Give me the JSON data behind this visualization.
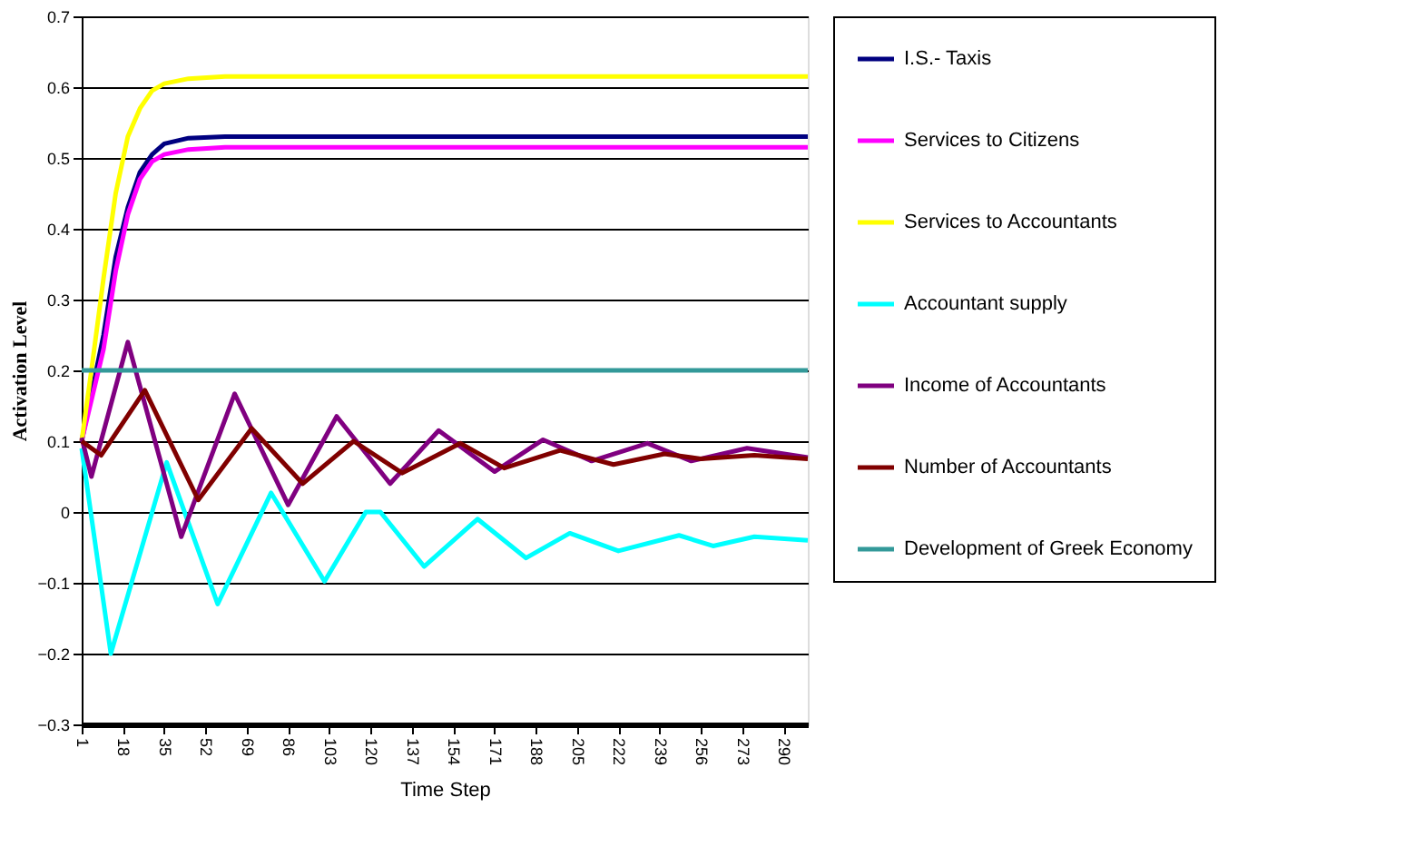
{
  "chart_data": {
    "type": "line",
    "xlabel": "Time Step",
    "ylabel": "Activation Level",
    "xlim": [
      1,
      300
    ],
    "xticks": [
      1,
      18,
      35,
      52,
      69,
      86,
      103,
      120,
      137,
      154,
      171,
      188,
      205,
      222,
      239,
      256,
      273,
      290
    ],
    "ylim": [
      -0.3,
      0.7
    ],
    "yticks": [
      -0.3,
      -0.2,
      -0.1,
      0,
      0.1,
      0.2,
      0.3,
      0.4,
      0.5,
      0.6,
      0.7
    ],
    "grid": "y",
    "legend": "right",
    "marker": "none",
    "line_style": "solid",
    "series": [
      {
        "name": "I.S.- Taxis",
        "color": "#000080",
        "x": [
          1,
          10,
          15,
          20,
          25,
          30,
          35,
          45,
          60,
          300
        ],
        "values": [
          0.1,
          0.25,
          0.36,
          0.43,
          0.48,
          0.505,
          0.52,
          0.528,
          0.53,
          0.53
        ]
      },
      {
        "name": "Services to Citizens",
        "color": "#ff00ff",
        "x": [
          1,
          10,
          15,
          20,
          25,
          30,
          35,
          45,
          60,
          300
        ],
        "values": [
          0.1,
          0.23,
          0.34,
          0.42,
          0.47,
          0.495,
          0.505,
          0.512,
          0.515,
          0.515
        ]
      },
      {
        "name": "Services to Accountants",
        "color": "#ffff00",
        "x": [
          1,
          5,
          10,
          15,
          20,
          25,
          30,
          35,
          45,
          60,
          300
        ],
        "values": [
          0.1,
          0.2,
          0.33,
          0.45,
          0.53,
          0.57,
          0.595,
          0.605,
          0.612,
          0.615,
          0.615
        ]
      },
      {
        "name": "Accountant supply",
        "color": "#00ffff",
        "x": [
          1,
          13,
          36,
          57,
          79,
          101,
          118,
          124,
          142,
          164,
          184,
          202,
          222,
          247,
          261,
          278,
          300
        ],
        "values": [
          0.09,
          -0.2,
          0.07,
          -0.13,
          0.027,
          -0.098,
          0.0,
          0.0,
          -0.077,
          -0.01,
          -0.065,
          -0.03,
          -0.055,
          -0.033,
          -0.048,
          -0.035,
          -0.04
        ]
      },
      {
        "name": "Income of Accountants",
        "color": "#800080",
        "x": [
          1,
          5,
          20,
          42,
          64,
          86,
          106,
          128,
          148,
          171,
          191,
          211,
          234,
          252,
          275,
          300
        ],
        "values": [
          0.105,
          0.05,
          0.24,
          -0.035,
          0.167,
          0.01,
          0.135,
          0.04,
          0.115,
          0.057,
          0.102,
          0.072,
          0.097,
          0.072,
          0.09,
          0.077
        ]
      },
      {
        "name": "Number of Accountants",
        "color": "#800000",
        "x": [
          1,
          9,
          27,
          49,
          71,
          92,
          113,
          133,
          157,
          175,
          198,
          220,
          241,
          256,
          278,
          300
        ],
        "values": [
          0.1,
          0.08,
          0.172,
          0.017,
          0.118,
          0.04,
          0.1,
          0.055,
          0.097,
          0.062,
          0.087,
          0.067,
          0.082,
          0.075,
          0.08,
          0.075
        ]
      },
      {
        "name": "Development of Greek Economy",
        "color": "#339999",
        "x": [
          1,
          300
        ],
        "values": [
          0.2,
          0.2
        ]
      }
    ]
  }
}
